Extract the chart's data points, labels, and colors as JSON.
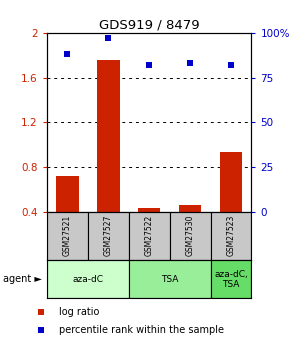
{
  "title": "GDS919 / 8479",
  "samples": [
    "GSM27521",
    "GSM27527",
    "GSM27522",
    "GSM27530",
    "GSM27523"
  ],
  "log_ratio": [
    0.72,
    1.76,
    0.44,
    0.46,
    0.94
  ],
  "percentile_rank": [
    88,
    97,
    82,
    83,
    82
  ],
  "ylim_left": [
    0.4,
    2.0
  ],
  "ylim_right": [
    0,
    100
  ],
  "yticks_left": [
    0.4,
    0.8,
    1.2,
    1.6,
    2.0
  ],
  "yticks_right": [
    0,
    25,
    50,
    75,
    100
  ],
  "ytick_labels_left": [
    "0.4",
    "0.8",
    "1.2",
    "1.6",
    "2"
  ],
  "ytick_labels_right": [
    "0",
    "25",
    "50",
    "75",
    "100%"
  ],
  "grid_lines": [
    0.8,
    1.2,
    1.6
  ],
  "bar_color": "#cc2200",
  "dot_color": "#0000cc",
  "sample_box_color": "#c8c8c8",
  "groups": [
    {
      "label": "aza-dC",
      "start": 0,
      "end": 1,
      "color": "#ccffcc"
    },
    {
      "label": "TSA",
      "start": 2,
      "end": 3,
      "color": "#99ee99"
    },
    {
      "label": "aza-dC,\nTSA",
      "start": 4,
      "end": 4,
      "color": "#66dd66"
    }
  ],
  "agent_label": "agent ►",
  "legend_bar_label": "log ratio",
  "legend_dot_label": "percentile rank within the sample"
}
